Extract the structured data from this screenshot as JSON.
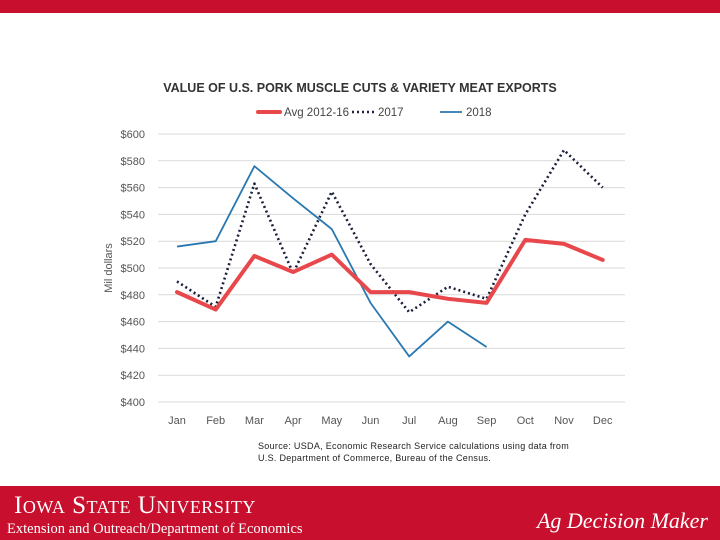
{
  "colors": {
    "brand_red": "#c8102e",
    "avg": "#e8484c",
    "y2017": "#1a1f3c",
    "y2018": "#2a78b0"
  },
  "chart_data": {
    "type": "line",
    "title": "VALUE OF U.S. PORK MUSCLE CUTS & VARIETY MEAT EXPORTS",
    "xlabel": "",
    "ylabel": "Mil dollars",
    "categories": [
      "Jan",
      "Feb",
      "Mar",
      "Apr",
      "May",
      "Jun",
      "Jul",
      "Aug",
      "Sep",
      "Oct",
      "Nov",
      "Dec"
    ],
    "ylim": [
      400,
      600
    ],
    "yticks": [
      400,
      420,
      440,
      460,
      480,
      500,
      520,
      540,
      560,
      580,
      600
    ],
    "ytick_labels": [
      "$400",
      "$420",
      "$440",
      "$460",
      "$480",
      "$500",
      "$520",
      "$540",
      "$560",
      "$580",
      "$600"
    ],
    "grid": true,
    "legend_position": "top",
    "series": [
      {
        "name": "Avg 2012-16",
        "style": "solid-thick",
        "color": "#e8484c",
        "values": [
          482,
          469,
          509,
          497,
          510,
          482,
          482,
          477,
          474,
          521,
          518,
          506
        ]
      },
      {
        "name": "2017",
        "style": "dotted",
        "color": "#1a1f3c",
        "values": [
          490,
          471,
          563,
          496,
          557,
          503,
          467,
          486,
          477,
          540,
          588,
          560
        ]
      },
      {
        "name": "2018",
        "style": "solid-thin",
        "color": "#2a78b0",
        "values": [
          516,
          520,
          576,
          552,
          529,
          474,
          434,
          460,
          441,
          null,
          null,
          null
        ]
      }
    ]
  },
  "source": {
    "line1": "Source: USDA, Economic Research Service calculations using data from",
    "line2": "U.S. Department of Commerce, Bureau of the Census."
  },
  "footer": {
    "university": "Iowa State University",
    "department": "Extension and Outreach/Department of Economics",
    "brand": "Ag Decision Maker"
  }
}
